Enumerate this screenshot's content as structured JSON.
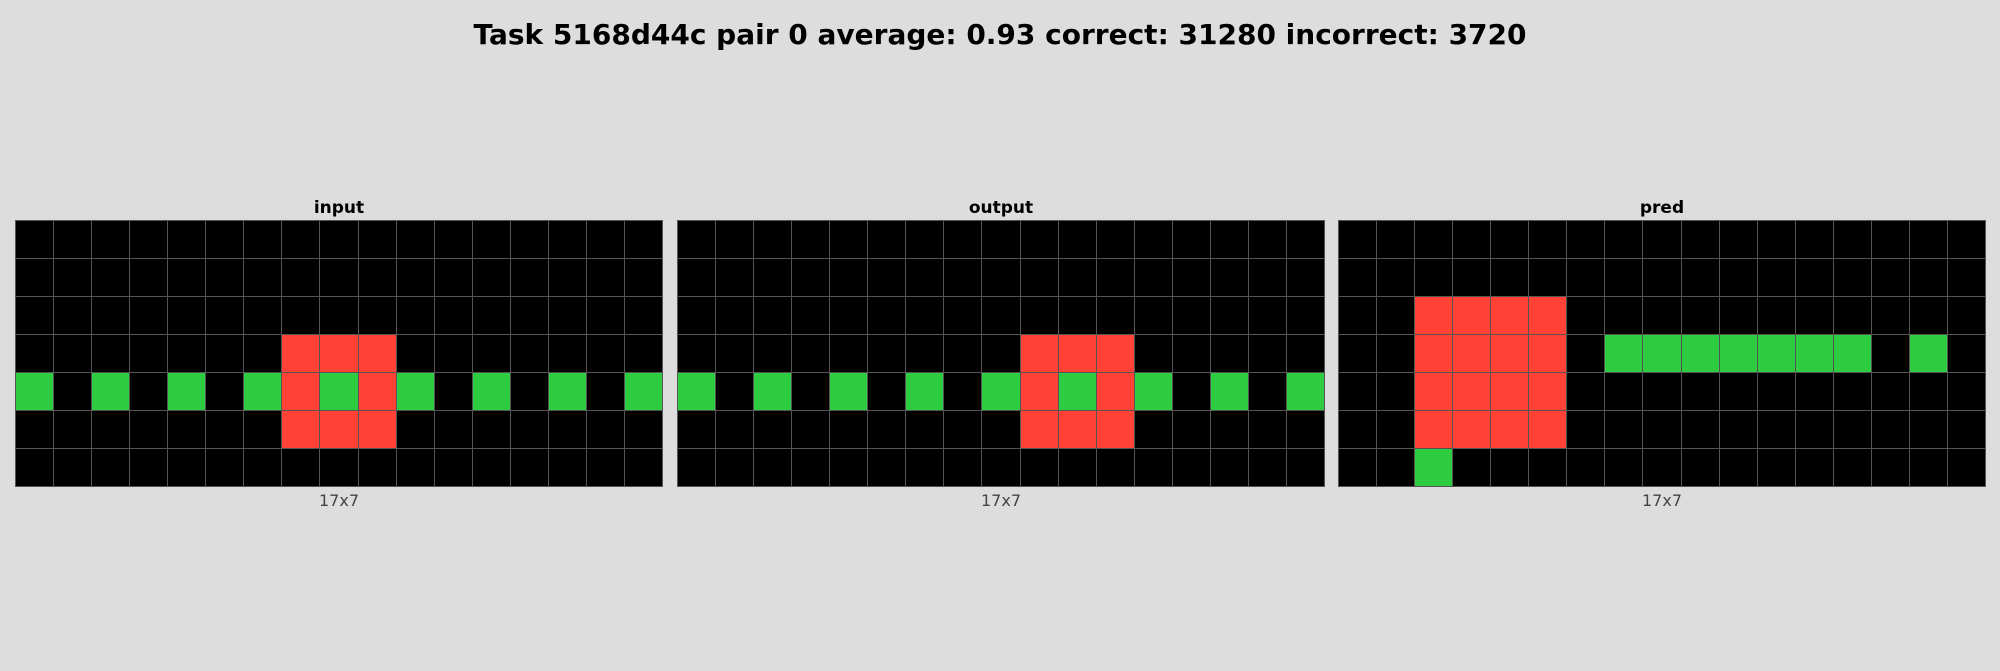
{
  "title": "Task 5168d44c pair 0 average: 0.93 correct: 31280 incorrect: 3720",
  "palette": {
    "0": "#000000",
    "2": "#ff4136",
    "3": "#2ecc40"
  },
  "panels": [
    {
      "label": "input",
      "size": "17x7",
      "grid": [
        [
          0,
          0,
          0,
          0,
          0,
          0,
          0,
          0,
          0,
          0,
          0,
          0,
          0,
          0,
          0,
          0,
          0
        ],
        [
          0,
          0,
          0,
          0,
          0,
          0,
          0,
          0,
          0,
          0,
          0,
          0,
          0,
          0,
          0,
          0,
          0
        ],
        [
          0,
          0,
          0,
          0,
          0,
          0,
          0,
          0,
          0,
          0,
          0,
          0,
          0,
          0,
          0,
          0,
          0
        ],
        [
          0,
          0,
          0,
          0,
          0,
          0,
          0,
          2,
          2,
          2,
          0,
          0,
          0,
          0,
          0,
          0,
          0
        ],
        [
          3,
          0,
          3,
          0,
          3,
          0,
          3,
          2,
          3,
          2,
          3,
          0,
          3,
          0,
          3,
          0,
          3
        ],
        [
          0,
          0,
          0,
          0,
          0,
          0,
          0,
          2,
          2,
          2,
          0,
          0,
          0,
          0,
          0,
          0,
          0
        ],
        [
          0,
          0,
          0,
          0,
          0,
          0,
          0,
          0,
          0,
          0,
          0,
          0,
          0,
          0,
          0,
          0,
          0
        ]
      ]
    },
    {
      "label": "output",
      "size": "17x7",
      "grid": [
        [
          0,
          0,
          0,
          0,
          0,
          0,
          0,
          0,
          0,
          0,
          0,
          0,
          0,
          0,
          0,
          0,
          0
        ],
        [
          0,
          0,
          0,
          0,
          0,
          0,
          0,
          0,
          0,
          0,
          0,
          0,
          0,
          0,
          0,
          0,
          0
        ],
        [
          0,
          0,
          0,
          0,
          0,
          0,
          0,
          0,
          0,
          0,
          0,
          0,
          0,
          0,
          0,
          0,
          0
        ],
        [
          0,
          0,
          0,
          0,
          0,
          0,
          0,
          0,
          0,
          2,
          2,
          2,
          0,
          0,
          0,
          0,
          0
        ],
        [
          3,
          0,
          3,
          0,
          3,
          0,
          3,
          0,
          3,
          2,
          3,
          2,
          3,
          0,
          3,
          0,
          3
        ],
        [
          0,
          0,
          0,
          0,
          0,
          0,
          0,
          0,
          0,
          2,
          2,
          2,
          0,
          0,
          0,
          0,
          0
        ],
        [
          0,
          0,
          0,
          0,
          0,
          0,
          0,
          0,
          0,
          0,
          0,
          0,
          0,
          0,
          0,
          0,
          0
        ]
      ]
    },
    {
      "label": "pred",
      "size": "17x7",
      "grid": [
        [
          0,
          0,
          0,
          0,
          0,
          0,
          0,
          0,
          0,
          0,
          0,
          0,
          0,
          0,
          0,
          0,
          0
        ],
        [
          0,
          0,
          0,
          0,
          0,
          0,
          0,
          0,
          0,
          0,
          0,
          0,
          0,
          0,
          0,
          0,
          0
        ],
        [
          0,
          0,
          2,
          2,
          2,
          2,
          0,
          0,
          0,
          0,
          0,
          0,
          0,
          0,
          0,
          0,
          0
        ],
        [
          0,
          0,
          2,
          2,
          2,
          2,
          0,
          3,
          3,
          3,
          3,
          3,
          3,
          3,
          0,
          3,
          0
        ],
        [
          0,
          0,
          2,
          2,
          2,
          2,
          0,
          0,
          0,
          0,
          0,
          0,
          0,
          0,
          0,
          0,
          0
        ],
        [
          0,
          0,
          2,
          2,
          2,
          2,
          0,
          0,
          0,
          0,
          0,
          0,
          0,
          0,
          0,
          0,
          0
        ],
        [
          0,
          0,
          3,
          0,
          0,
          0,
          0,
          0,
          0,
          0,
          0,
          0,
          0,
          0,
          0,
          0,
          0
        ]
      ]
    }
  ]
}
